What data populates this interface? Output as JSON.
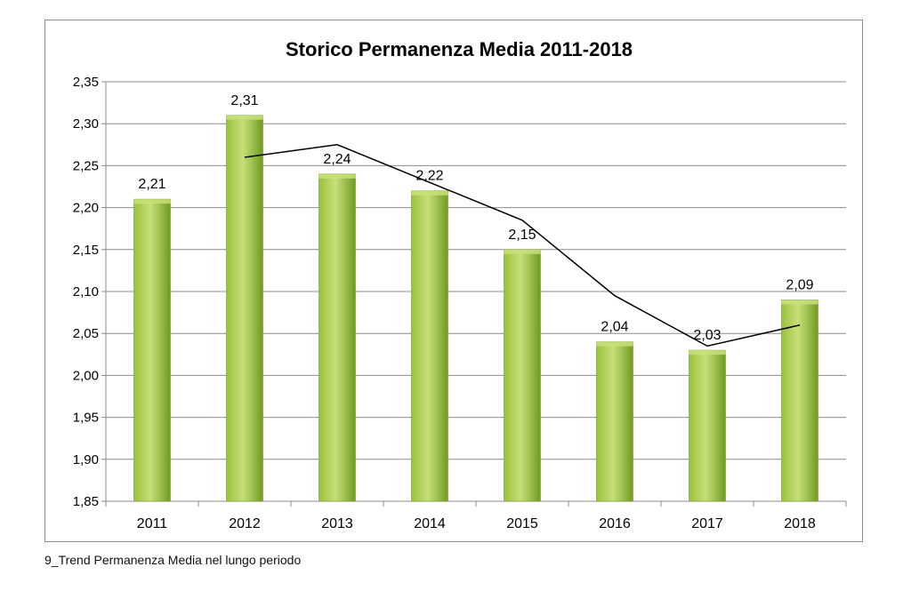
{
  "caption": "9_Trend Permanenza Media nel lungo periodo",
  "colors": {
    "bar_light": "#c8e07a",
    "bar_mid": "#9bc23c",
    "bar_dark": "#6f9a22",
    "trendline": "#000000",
    "grid": "#8c8c8c",
    "text": "#000000"
  },
  "chart_data": {
    "type": "bar",
    "title": "Storico Permanenza Media 2011-2018",
    "categories": [
      "2011",
      "2012",
      "2013",
      "2014",
      "2015",
      "2016",
      "2017",
      "2018"
    ],
    "values": [
      2.21,
      2.31,
      2.24,
      2.22,
      2.15,
      2.04,
      2.03,
      2.09
    ],
    "value_labels": [
      "2,21",
      "2,31",
      "2,24",
      "2,22",
      "2,15",
      "2,04",
      "2,03",
      "2,09"
    ],
    "trendline": {
      "type": "line",
      "x": [
        "2012",
        "2013",
        "2014",
        "2015",
        "2016",
        "2017",
        "2018"
      ],
      "values": [
        2.26,
        2.275,
        2.23,
        2.185,
        2.095,
        2.035,
        2.06
      ]
    },
    "ylim": [
      1.85,
      2.35
    ],
    "yticks": [
      1.85,
      1.9,
      1.95,
      2.0,
      2.05,
      2.1,
      2.15,
      2.2,
      2.25,
      2.3,
      2.35
    ],
    "ytick_labels": [
      "1,85",
      "1,90",
      "1,95",
      "2,00",
      "2,05",
      "2,10",
      "2,15",
      "2,20",
      "2,25",
      "2,30",
      "2,35"
    ],
    "xlabel": "",
    "ylabel": "",
    "grid": true,
    "legend": "none"
  }
}
